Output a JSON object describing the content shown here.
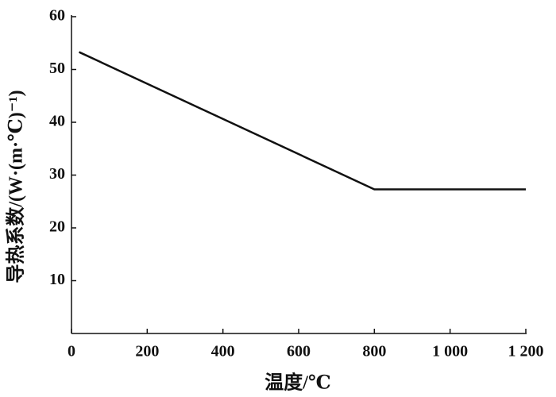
{
  "chart_data": {
    "type": "line",
    "xlabel": "温度/℃",
    "ylabel": "导热系数/(W·(m·℃)⁻¹)",
    "x": [
      20,
      800,
      1200
    ],
    "series": [
      {
        "color": "#111111",
        "values": [
          53.3,
          27.3,
          27.3
        ]
      }
    ],
    "xlim": [
      0,
      1200
    ],
    "xticks": [
      0,
      200,
      400,
      600,
      800,
      {
        "value": 1000,
        "label": "1 000"
      },
      {
        "value": 1200,
        "label": "1 200"
      }
    ],
    "ylim": [
      0,
      60
    ],
    "yticks": [
      10,
      20,
      30,
      40,
      50,
      60
    ]
  }
}
